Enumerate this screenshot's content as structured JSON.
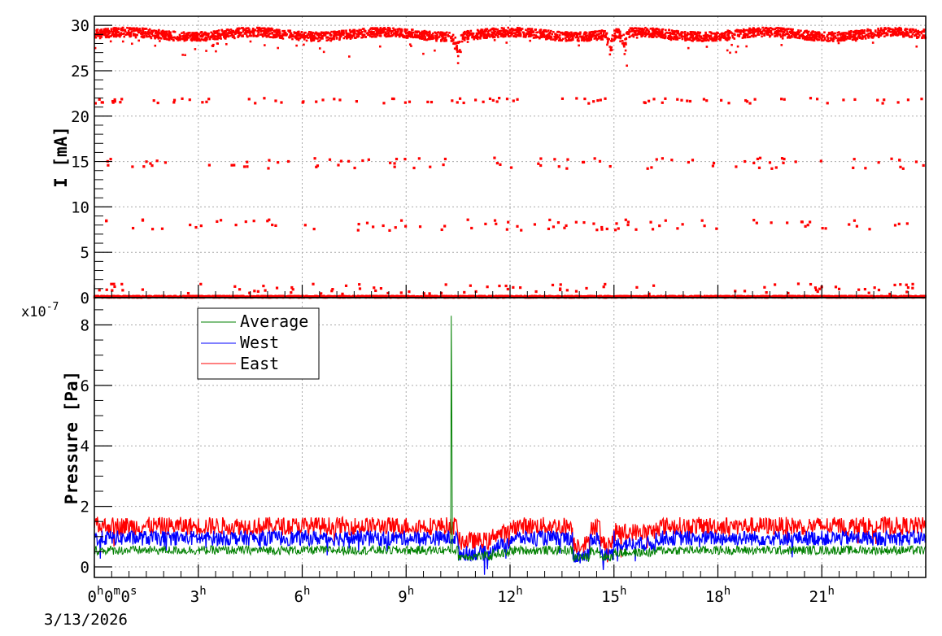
{
  "chart_data": [
    {
      "type": "scatter",
      "panel": "top",
      "ylabel": "I [mA]",
      "ylim": [
        0,
        31
      ],
      "y_ticks": [
        "0",
        "5",
        "10",
        "15",
        "20",
        "25",
        "30"
      ],
      "grid": true,
      "x_unit": "hours",
      "xlim": [
        0,
        24
      ],
      "series": [
        {
          "color": "#ff0000",
          "bands": [
            {
              "level": 29.0,
              "spread": 0.5,
              "density": "dense"
            },
            {
              "level": 0.1,
              "spread": 0.1,
              "density": "dense"
            },
            {
              "level": 14.8,
              "spread": 0.6,
              "density": "sparse"
            },
            {
              "level": 21.7,
              "spread": 0.3,
              "density": "sparse"
            },
            {
              "level": 8.0,
              "spread": 0.6,
              "density": "sparse"
            },
            {
              "level": 1.0,
              "spread": 0.6,
              "density": "sparse"
            }
          ]
        }
      ]
    },
    {
      "type": "line",
      "panel": "bottom",
      "ylabel": "Pressure [Pa]",
      "y_multiplier": "x10",
      "y_multiplier_exp": "-7",
      "ylim": [
        -0.35,
        8.9
      ],
      "y_ticks": [
        "0",
        "2",
        "4",
        "6",
        "8"
      ],
      "grid": true,
      "legend_placement": "top-left",
      "x_unit": "hours",
      "xlim": [
        0,
        24
      ],
      "x_ticks": [
        {
          "value": 0,
          "main": "0",
          "sup": "h",
          "main2": "0",
          "sup2": "m",
          "main3": "0",
          "sup3": "s"
        },
        {
          "value": 3,
          "main": "3",
          "sup": "h"
        },
        {
          "value": 6,
          "main": "6",
          "sup": "h"
        },
        {
          "value": 9,
          "main": "9",
          "sup": "h"
        },
        {
          "value": 12,
          "main": "12",
          "sup": "h"
        },
        {
          "value": 15,
          "main": "15",
          "sup": "h"
        },
        {
          "value": 18,
          "main": "18",
          "sup": "h"
        },
        {
          "value": 21,
          "main": "21",
          "sup": "h"
        }
      ],
      "date_label": "3/13/2026",
      "series": [
        {
          "name": "Average",
          "color": "#008000",
          "base": 0.55,
          "noise": 0.15,
          "spike": {
            "x": 10.3,
            "peak": 8.3,
            "second": 4.5
          }
        },
        {
          "name": "West",
          "color": "#0000ff",
          "base": 0.95,
          "noise": 0.25
        },
        {
          "name": "East",
          "color": "#ff0000",
          "base": 1.35,
          "noise": 0.3
        }
      ]
    }
  ]
}
